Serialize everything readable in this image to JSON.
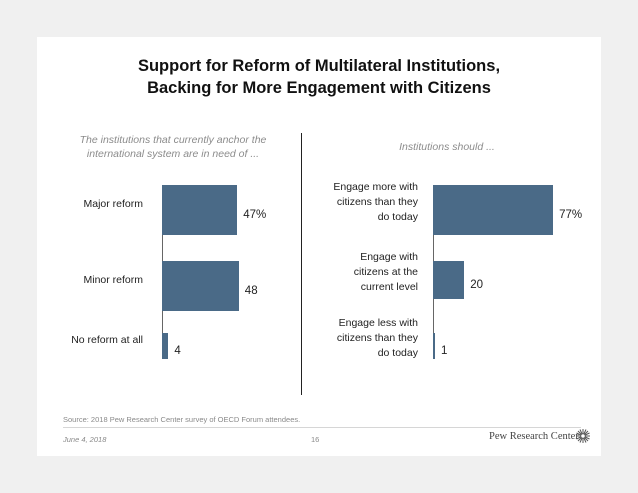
{
  "title_line1": "Support for Reform of Multilateral Institutions,",
  "title_line2": "Backing for More Engagement with Citizens",
  "left_subtitle_line1": "The institutions that currently anchor the",
  "left_subtitle_line2": "international system are in need of ...",
  "right_subtitle": "Institutions should ...",
  "footer": {
    "source": "Source: 2018 Pew Research Center survey of OECD Forum attendees.",
    "date": "June 4, 2018",
    "page": "16",
    "brand": "Pew Research Center"
  },
  "colors": {
    "bar": "#4a6a87"
  },
  "chart_data": [
    {
      "type": "bar",
      "orientation": "horizontal",
      "title": "The institutions that currently anchor the international system are in need of ...",
      "categories": [
        "Major reform",
        "Minor reform",
        "No reform at all"
      ],
      "values": [
        47,
        48,
        4
      ],
      "value_labels": [
        "47%",
        "48",
        "4"
      ],
      "xlim": [
        0,
        100
      ],
      "unit": "%"
    },
    {
      "type": "bar",
      "orientation": "horizontal",
      "title": "Institutions should ...",
      "categories": [
        [
          "Engage more with",
          "citizens than they",
          "do today"
        ],
        [
          "Engage with",
          "citizens at the",
          "current level"
        ],
        [
          "Engage less with",
          "citizens than they",
          "do today"
        ]
      ],
      "values": [
        77,
        20,
        1
      ],
      "value_labels": [
        "77%",
        "20",
        "1"
      ],
      "xlim": [
        0,
        100
      ],
      "unit": "%"
    }
  ]
}
